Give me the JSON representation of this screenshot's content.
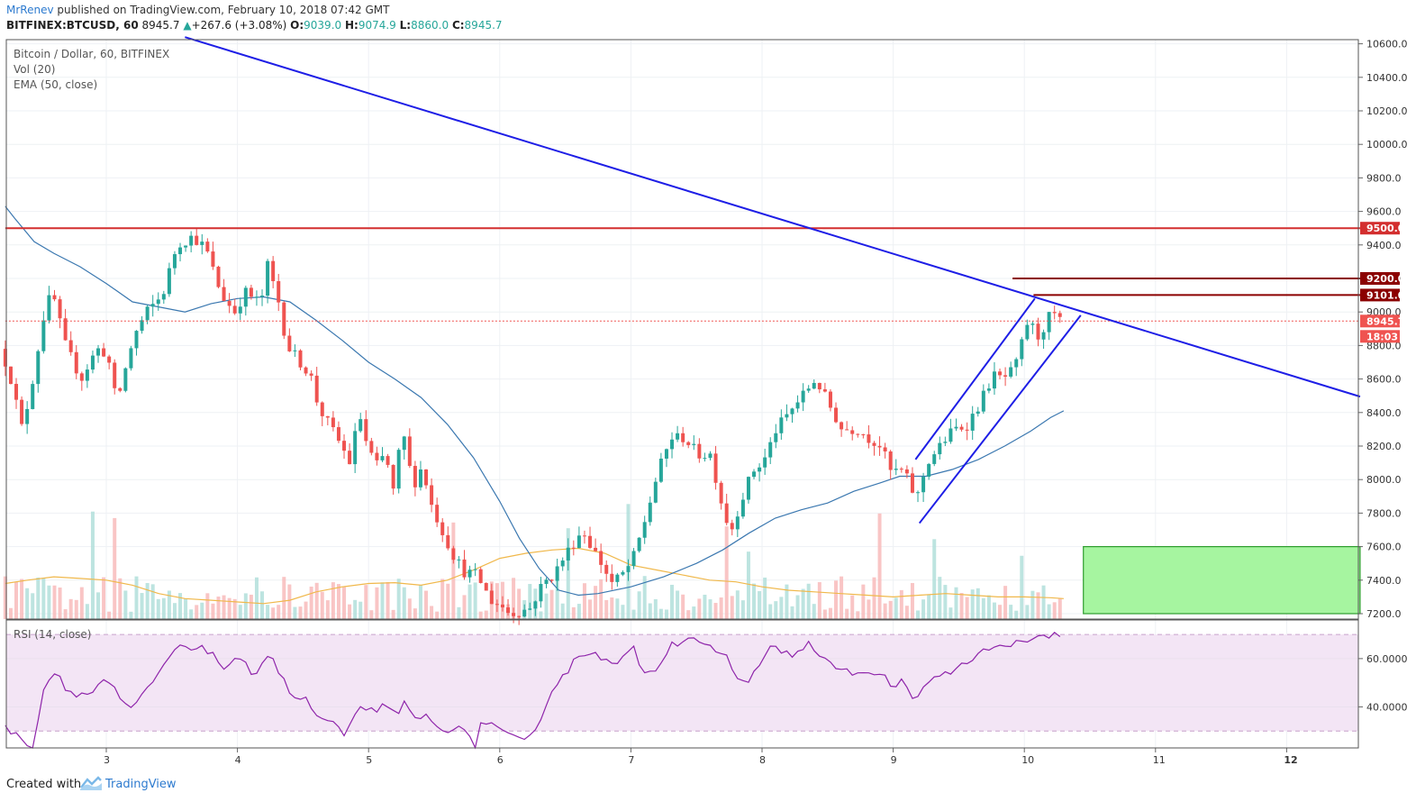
{
  "header": {
    "author": "MrRenev",
    "published": "published on TradingView.com, February 10, 2018 07:42 GMT",
    "symbol": "BITFINEX:BTCUSD, 60",
    "last": "8945.7",
    "change": "+267.6 (+3.08%)",
    "open_label": "O:",
    "open": "9039.0",
    "high_label": "H:",
    "high": "9074.9",
    "low_label": "L:",
    "low": "8860.0",
    "close_label": "C:",
    "close": "8945.7"
  },
  "legend": {
    "title": "Bitcoin / Dollar, 60, BITFINEX",
    "vol": "Vol (20)",
    "ema": "EMA (50, close)",
    "rsi": "RSI (14, close)"
  },
  "footer": {
    "created": "Created with",
    "brand": "TradingView"
  },
  "colors": {
    "up": "#26a69a",
    "down": "#ef5350",
    "trend": "#1e1ee6",
    "resistance": "#d32f2f",
    "darkred": "#8b0000",
    "ema": "#3b78b0",
    "volma": "#f0b84b",
    "rsi": "#8e24aa",
    "zone": "#a6f5a0",
    "rsiband": "#f3e5f5"
  },
  "chart_data": {
    "type": "candlestick",
    "title": "Bitcoin / Dollar, 60, BITFINEX",
    "ylim": [
      7200,
      10650
    ],
    "y_ticks": [
      "10600.0",
      "10400.0",
      "10200.0",
      "10000.0",
      "9800.0",
      "9600.0",
      "9400.0",
      "9200.0",
      "9000.0",
      "8800.0",
      "8600.0",
      "8400.0",
      "8200.0",
      "8000.0",
      "7800.0",
      "7600.0",
      "7400.0",
      "7200.0"
    ],
    "x_ticks": [
      "3",
      "4",
      "5",
      "6",
      "7",
      "8",
      "9",
      "10",
      "11",
      "12"
    ],
    "x_tick_days": [
      3,
      4,
      5,
      6,
      7,
      8,
      9,
      10,
      11,
      12
    ],
    "xlim_days": [
      2.23,
      12.56
    ],
    "price_labels": {
      "level_9500": "9500.0",
      "level_9200": "9200.0",
      "level_9101": "9101.0",
      "last_price": "8945.7",
      "countdown": "18:03"
    },
    "horizontal_levels": [
      {
        "value": 9500,
        "from_day": 2.23,
        "to_day": 12.56,
        "color": "resistance"
      },
      {
        "value": 9200,
        "from_day": 9.91,
        "to_day": 12.56,
        "color": "darkred"
      },
      {
        "value": 9101,
        "from_day": 10.07,
        "to_day": 12.56,
        "color": "darkred"
      },
      {
        "value": 8945.7,
        "from_day": 2.23,
        "to_day": 12.56,
        "color": "down",
        "style": "dotted"
      }
    ],
    "trend_lines": [
      {
        "from": [
          3.6,
          10640
        ],
        "to": [
          12.56,
          8495
        ]
      },
      {
        "from": [
          9.17,
          8120
        ],
        "to": [
          10.08,
          9080
        ]
      },
      {
        "from": [
          9.2,
          7740
        ],
        "to": [
          10.43,
          8980
        ]
      }
    ],
    "support_zone": {
      "from_day": 10.45,
      "to_day": 12.56,
      "low": 7200,
      "high": 7600
    },
    "anchors": [
      [
        2.23,
        8780
      ],
      [
        2.3,
        8650
      ],
      [
        2.4,
        8300
      ],
      [
        2.47,
        8550
      ],
      [
        2.57,
        9000
      ],
      [
        2.63,
        9120
      ],
      [
        2.73,
        8800
      ],
      [
        2.85,
        8600
      ],
      [
        2.97,
        8780
      ],
      [
        3.05,
        8750
      ],
      [
        3.12,
        8450
      ],
      [
        3.25,
        8850
      ],
      [
        3.35,
        9000
      ],
      [
        3.47,
        9100
      ],
      [
        3.58,
        9400
      ],
      [
        3.7,
        9450
      ],
      [
        3.8,
        9380
      ],
      [
        3.92,
        9100
      ],
      [
        4.02,
        9000
      ],
      [
        4.1,
        9120
      ],
      [
        4.22,
        9050
      ],
      [
        4.27,
        9280
      ],
      [
        4.35,
        9080
      ],
      [
        4.42,
        8800
      ],
      [
        4.5,
        8720
      ],
      [
        4.6,
        8620
      ],
      [
        4.66,
        8430
      ],
      [
        4.8,
        8250
      ],
      [
        4.9,
        8100
      ],
      [
        4.97,
        8400
      ],
      [
        5.03,
        8200
      ],
      [
        5.1,
        8080
      ],
      [
        5.17,
        8150
      ],
      [
        5.23,
        7930
      ],
      [
        5.3,
        8300
      ],
      [
        5.38,
        7960
      ],
      [
        5.45,
        8080
      ],
      [
        5.52,
        7850
      ],
      [
        5.6,
        7700
      ],
      [
        5.68,
        7560
      ],
      [
        5.77,
        7450
      ],
      [
        5.87,
        7430
      ],
      [
        5.97,
        7280
      ],
      [
        6.05,
        7250
      ],
      [
        6.12,
        7200
      ],
      [
        6.27,
        7230
      ],
      [
        6.37,
        7380
      ],
      [
        6.45,
        7430
      ],
      [
        6.55,
        7560
      ],
      [
        6.67,
        7700
      ],
      [
        6.78,
        7550
      ],
      [
        6.9,
        7380
      ],
      [
        7.0,
        7450
      ],
      [
        7.07,
        7550
      ],
      [
        7.15,
        7760
      ],
      [
        7.25,
        8050
      ],
      [
        7.35,
        8250
      ],
      [
        7.45,
        8250
      ],
      [
        7.55,
        8150
      ],
      [
        7.65,
        8150
      ],
      [
        7.72,
        7900
      ],
      [
        7.8,
        7680
      ],
      [
        7.87,
        7850
      ],
      [
        7.97,
        8050
      ],
      [
        8.05,
        8100
      ],
      [
        8.15,
        8300
      ],
      [
        8.25,
        8400
      ],
      [
        8.35,
        8500
      ],
      [
        8.45,
        8600
      ],
      [
        8.55,
        8450
      ],
      [
        8.65,
        8300
      ],
      [
        8.78,
        8300
      ],
      [
        8.85,
        8250
      ],
      [
        8.95,
        8200
      ],
      [
        9.02,
        8050
      ],
      [
        9.12,
        8050
      ],
      [
        9.22,
        7880
      ],
      [
        9.3,
        8100
      ],
      [
        9.4,
        8200
      ],
      [
        9.5,
        8300
      ],
      [
        9.6,
        8320
      ],
      [
        9.7,
        8450
      ],
      [
        9.8,
        8620
      ],
      [
        9.88,
        8600
      ],
      [
        9.97,
        8660
      ],
      [
        10.07,
        8950
      ],
      [
        10.15,
        8850
      ],
      [
        10.25,
        9000
      ],
      [
        10.3,
        8945
      ]
    ],
    "ema_series": [
      [
        2.23,
        9630
      ],
      [
        2.3,
        9560
      ],
      [
        2.45,
        9420
      ],
      [
        2.6,
        9350
      ],
      [
        2.8,
        9270
      ],
      [
        3.0,
        9170
      ],
      [
        3.2,
        9060
      ],
      [
        3.4,
        9030
      ],
      [
        3.6,
        9000
      ],
      [
        3.8,
        9050
      ],
      [
        4.0,
        9080
      ],
      [
        4.2,
        9090
      ],
      [
        4.4,
        9060
      ],
      [
        4.6,
        8950
      ],
      [
        4.8,
        8830
      ],
      [
        5.0,
        8700
      ],
      [
        5.2,
        8600
      ],
      [
        5.4,
        8490
      ],
      [
        5.6,
        8330
      ],
      [
        5.8,
        8130
      ],
      [
        6.0,
        7870
      ],
      [
        6.15,
        7650
      ],
      [
        6.3,
        7470
      ],
      [
        6.45,
        7340
      ],
      [
        6.6,
        7310
      ],
      [
        6.75,
        7320
      ],
      [
        7.0,
        7360
      ],
      [
        7.25,
        7420
      ],
      [
        7.5,
        7500
      ],
      [
        7.7,
        7580
      ],
      [
        7.9,
        7680
      ],
      [
        8.1,
        7770
      ],
      [
        8.3,
        7820
      ],
      [
        8.5,
        7860
      ],
      [
        8.7,
        7930
      ],
      [
        8.9,
        7980
      ],
      [
        9.05,
        8020
      ],
      [
        9.25,
        8020
      ],
      [
        9.45,
        8060
      ],
      [
        9.65,
        8120
      ],
      [
        9.85,
        8200
      ],
      [
        10.05,
        8290
      ],
      [
        10.2,
        8370
      ],
      [
        10.3,
        8410
      ]
    ],
    "volume_ma": [
      [
        2.23,
        7380
      ],
      [
        2.4,
        7400
      ],
      [
        2.6,
        7420
      ],
      [
        2.8,
        7410
      ],
      [
        3.0,
        7400
      ],
      [
        3.2,
        7370
      ],
      [
        3.4,
        7320
      ],
      [
        3.6,
        7290
      ],
      [
        3.8,
        7280
      ],
      [
        4.0,
        7270
      ],
      [
        4.2,
        7260
      ],
      [
        4.4,
        7280
      ],
      [
        4.6,
        7330
      ],
      [
        4.8,
        7360
      ],
      [
        5.0,
        7380
      ],
      [
        5.2,
        7385
      ],
      [
        5.4,
        7370
      ],
      [
        5.6,
        7400
      ],
      [
        5.8,
        7460
      ],
      [
        6.0,
        7530
      ],
      [
        6.2,
        7560
      ],
      [
        6.4,
        7580
      ],
      [
        6.6,
        7590
      ],
      [
        6.8,
        7560
      ],
      [
        7.0,
        7490
      ],
      [
        7.2,
        7460
      ],
      [
        7.4,
        7430
      ],
      [
        7.6,
        7400
      ],
      [
        7.8,
        7390
      ],
      [
        8.0,
        7360
      ],
      [
        8.2,
        7340
      ],
      [
        8.4,
        7330
      ],
      [
        8.6,
        7320
      ],
      [
        8.8,
        7310
      ],
      [
        9.0,
        7300
      ],
      [
        9.2,
        7310
      ],
      [
        9.4,
        7320
      ],
      [
        9.6,
        7310
      ],
      [
        9.8,
        7300
      ],
      [
        10.0,
        7300
      ],
      [
        10.2,
        7295
      ],
      [
        10.3,
        7290
      ]
    ],
    "volume_bars_scaled": true,
    "rsi": {
      "label": "RSI (14, close)",
      "ylim": [
        23,
        76
      ],
      "ticks": [
        "60.0000",
        "40.0000"
      ],
      "tick_values": [
        60,
        40
      ],
      "overbought": 70,
      "oversold": 30,
      "anchors": [
        [
          2.23,
          31
        ],
        [
          2.28,
          30
        ],
        [
          2.35,
          26
        ],
        [
          2.45,
          24
        ],
        [
          2.48,
          35
        ],
        [
          2.52,
          47
        ],
        [
          2.58,
          53
        ],
        [
          2.62,
          55
        ],
        [
          2.7,
          47
        ],
        [
          2.8,
          45
        ],
        [
          2.9,
          46
        ],
        [
          2.97,
          52
        ],
        [
          3.05,
          48
        ],
        [
          3.12,
          42
        ],
        [
          3.18,
          38
        ],
        [
          3.28,
          45
        ],
        [
          3.36,
          51
        ],
        [
          3.45,
          57
        ],
        [
          3.5,
          63
        ],
        [
          3.56,
          65
        ],
        [
          3.62,
          63
        ],
        [
          3.72,
          66
        ],
        [
          3.8,
          62
        ],
        [
          3.9,
          56
        ],
        [
          3.96,
          59
        ],
        [
          4.05,
          58
        ],
        [
          4.12,
          53
        ],
        [
          4.2,
          60
        ],
        [
          4.26,
          62
        ],
        [
          4.32,
          54
        ],
        [
          4.42,
          44
        ],
        [
          4.52,
          43
        ],
        [
          4.62,
          35
        ],
        [
          4.72,
          34
        ],
        [
          4.82,
          27
        ],
        [
          4.88,
          34
        ],
        [
          4.95,
          42
        ],
        [
          5.0,
          38
        ],
        [
          5.1,
          40
        ],
        [
          5.17,
          38
        ],
        [
          5.22,
          36
        ],
        [
          5.28,
          42
        ],
        [
          5.35,
          35
        ],
        [
          5.42,
          37
        ],
        [
          5.5,
          32
        ],
        [
          5.58,
          30
        ],
        [
          5.68,
          33
        ],
        [
          5.76,
          27
        ],
        [
          5.82,
          24
        ],
        [
          5.85,
          33
        ],
        [
          5.92,
          34
        ],
        [
          5.98,
          31
        ],
        [
          6.05,
          28
        ],
        [
          6.12,
          27
        ],
        [
          6.2,
          25
        ],
        [
          6.26,
          29
        ],
        [
          6.32,
          37
        ],
        [
          6.38,
          45
        ],
        [
          6.46,
          52
        ],
        [
          6.52,
          55
        ],
        [
          6.58,
          60
        ],
        [
          6.65,
          62
        ],
        [
          6.72,
          64
        ],
        [
          6.8,
          59
        ],
        [
          6.88,
          57
        ],
        [
          6.96,
          61
        ],
        [
          7.02,
          64
        ],
        [
          7.08,
          56
        ],
        [
          7.15,
          54
        ],
        [
          7.22,
          58
        ],
        [
          7.3,
          66
        ],
        [
          7.38,
          67
        ],
        [
          7.45,
          70
        ],
        [
          7.52,
          67
        ],
        [
          7.58,
          66
        ],
        [
          7.66,
          61
        ],
        [
          7.74,
          60
        ],
        [
          7.82,
          51
        ],
        [
          7.88,
          49
        ],
        [
          7.94,
          55
        ],
        [
          8.0,
          60
        ],
        [
          8.05,
          64
        ],
        [
          8.12,
          64
        ],
        [
          8.2,
          62
        ],
        [
          8.28,
          62
        ],
        [
          8.35,
          67
        ],
        [
          8.42,
          62
        ],
        [
          8.48,
          59
        ],
        [
          8.55,
          56
        ],
        [
          8.62,
          57
        ],
        [
          8.7,
          52
        ],
        [
          8.78,
          55
        ],
        [
          8.85,
          52
        ],
        [
          8.92,
          55
        ],
        [
          8.98,
          50
        ],
        [
          9.02,
          47
        ],
        [
          9.06,
          51
        ],
        [
          9.12,
          46
        ],
        [
          9.17,
          41
        ],
        [
          9.22,
          47
        ],
        [
          9.28,
          52
        ],
        [
          9.34,
          52
        ],
        [
          9.4,
          55
        ],
        [
          9.46,
          55
        ],
        [
          9.52,
          57
        ],
        [
          9.6,
          60
        ],
        [
          9.66,
          62
        ],
        [
          9.72,
          63
        ],
        [
          9.8,
          65
        ],
        [
          9.88,
          64
        ],
        [
          9.96,
          68
        ],
        [
          10.05,
          67
        ],
        [
          10.12,
          70
        ],
        [
          10.18,
          67
        ],
        [
          10.25,
          71
        ],
        [
          10.3,
          64
        ]
      ]
    }
  }
}
